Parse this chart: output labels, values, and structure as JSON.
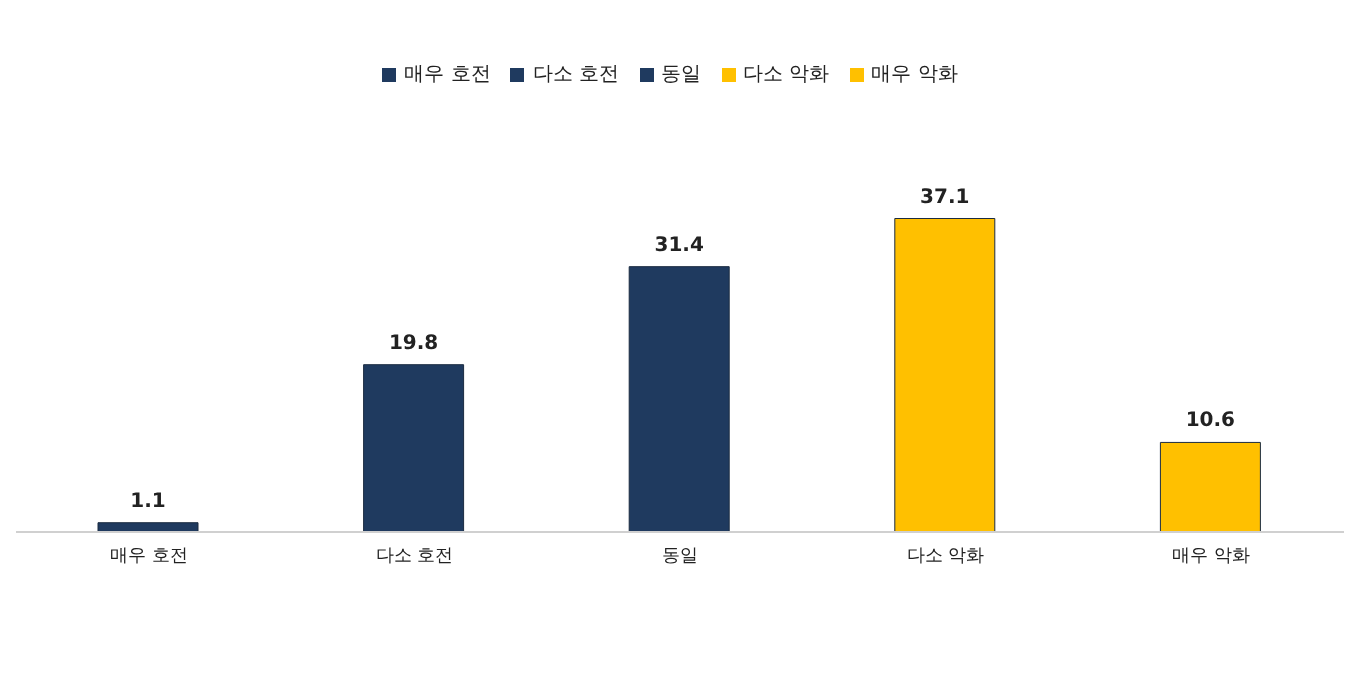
{
  "chart_data": {
    "type": "bar",
    "categories": [
      "매우 호전",
      "다소 호전",
      "동일",
      "다소 악화",
      "매우 악화"
    ],
    "series": [
      {
        "name": "매우 호전",
        "color": "#1f3a5f",
        "values": [
          1.1,
          null,
          null,
          null,
          null
        ]
      },
      {
        "name": "다소 호전",
        "color": "#1f3a5f",
        "values": [
          null,
          19.8,
          null,
          null,
          null
        ]
      },
      {
        "name": "동일",
        "color": "#1f3a5f",
        "values": [
          null,
          null,
          31.4,
          null,
          null
        ]
      },
      {
        "name": "다소 악화",
        "color": "#ffc000",
        "values": [
          null,
          null,
          null,
          37.1,
          null
        ]
      },
      {
        "name": "매우 악화",
        "color": "#ffc000",
        "values": [
          null,
          null,
          null,
          null,
          10.6
        ]
      }
    ],
    "stacked": true,
    "data_labels": true,
    "legend": "top",
    "tick_labels": "x"
  }
}
